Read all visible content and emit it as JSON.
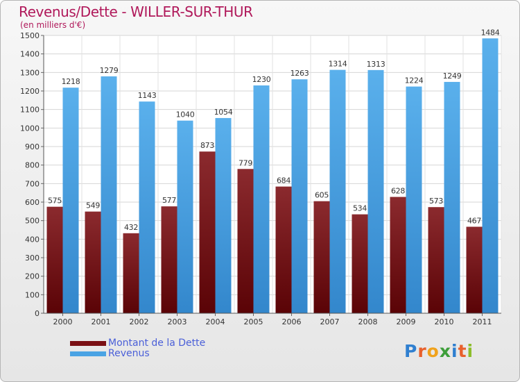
{
  "header": {
    "title": "Revenus/Dette - WILLER-SUR-THUR",
    "subtitle": "(en milliers d'€)"
  },
  "legend": {
    "items": [
      {
        "label": "Montant de la Dette",
        "color": "#7a1014"
      },
      {
        "label": "Revenus",
        "color": "#4aa3e4"
      }
    ]
  },
  "logo": {
    "text": "Proxiti"
  },
  "chart_data": {
    "type": "bar",
    "title": "Revenus/Dette - WILLER-SUR-THUR",
    "ylabel": "(en milliers d'€)",
    "xlabel": "",
    "ylim": [
      0,
      1500
    ],
    "ytick_step": 100,
    "grid": true,
    "categories": [
      "2000",
      "2001",
      "2002",
      "2003",
      "2004",
      "2005",
      "2006",
      "2007",
      "2008",
      "2009",
      "2010",
      "2011"
    ],
    "series": [
      {
        "name": "Montant de la Dette",
        "color_top": "#8b2a2e",
        "color_bottom": "#5a0306",
        "values": [
          575,
          549,
          432,
          577,
          873,
          779,
          684,
          605,
          534,
          628,
          573,
          467
        ]
      },
      {
        "name": "Revenus",
        "color_top": "#5ab0ec",
        "color_bottom": "#3387cc",
        "values": [
          1218,
          1279,
          1143,
          1040,
          1054,
          1230,
          1263,
          1314,
          1313,
          1224,
          1249,
          1484
        ]
      }
    ]
  }
}
